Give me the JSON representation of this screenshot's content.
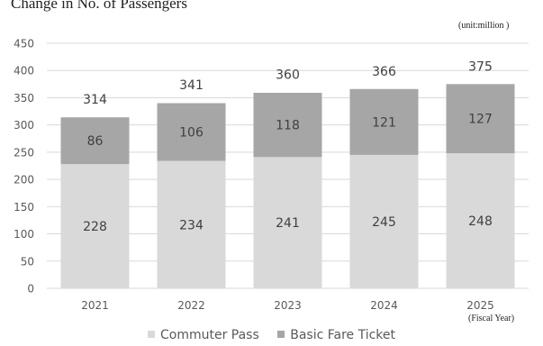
{
  "title": "Change in No. of Passengers",
  "unit_label": "(unit:million )",
  "x_axis_note": "(Fiscal Year)",
  "colors": {
    "commuter_pass": "#d9d9d9",
    "basic_fare_ticket": "#a6a6a6",
    "grid": "#d9d9d9",
    "axis_text": "#595959",
    "label_text": "#404040"
  },
  "chart_data": {
    "type": "bar",
    "stacked": true,
    "title": "Change in No. of Passengers",
    "xlabel": "",
    "ylabel": "",
    "categories": [
      "2021",
      "2022",
      "2023",
      "2024",
      "2025"
    ],
    "series": [
      {
        "name": "Commuter Pass",
        "values": [
          228,
          234,
          241,
          245,
          248
        ]
      },
      {
        "name": "Basic Fare Ticket",
        "values": [
          86,
          106,
          118,
          121,
          127
        ]
      }
    ],
    "totals": [
      314,
      341,
      360,
      366,
      375
    ],
    "ylim": [
      0,
      450
    ],
    "yticks": [
      0,
      50,
      100,
      150,
      200,
      250,
      300,
      350,
      400,
      450
    ],
    "grid": true,
    "legend_position": "bottom"
  }
}
